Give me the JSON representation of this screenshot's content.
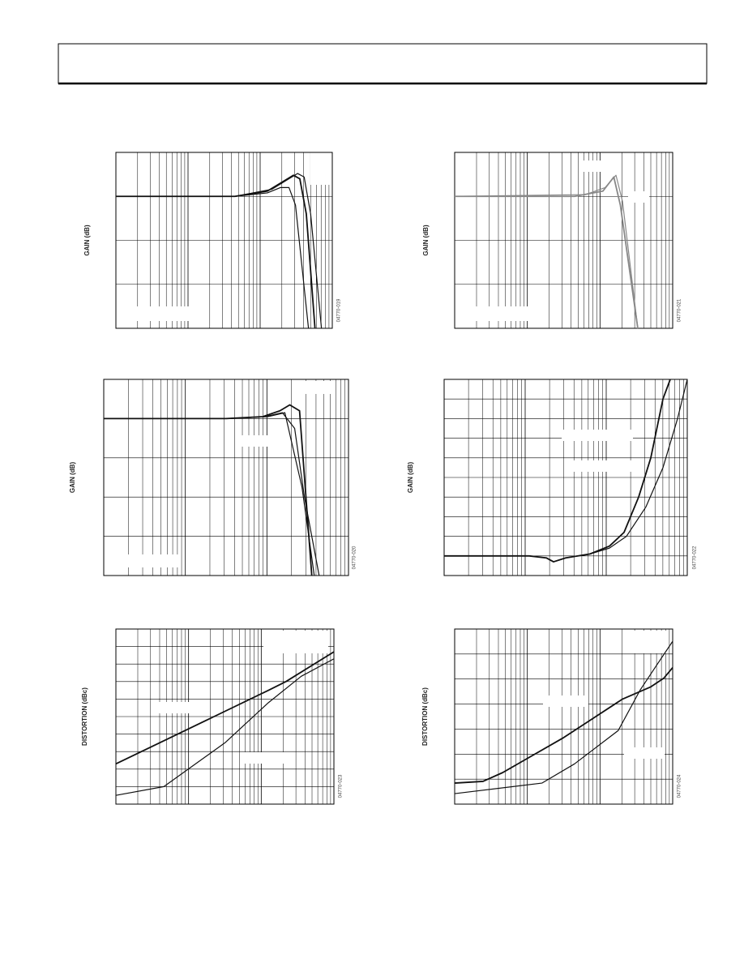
{
  "figures": [
    {
      "y_label": "GAIN (dB)",
      "code": "04770-019"
    },
    {
      "y_label": "GAIN (dB)",
      "code": "04770-021"
    },
    {
      "y_label": "GAIN (dB)",
      "code": "04770-020"
    },
    {
      "y_label": "GAIN (dB)",
      "code": "04770-022"
    },
    {
      "y_label": "DISTORTION (dBc)",
      "code": "04770-023"
    },
    {
      "y_label": "DISTORTION (dBc)",
      "code": "04770-024"
    }
  ]
}
